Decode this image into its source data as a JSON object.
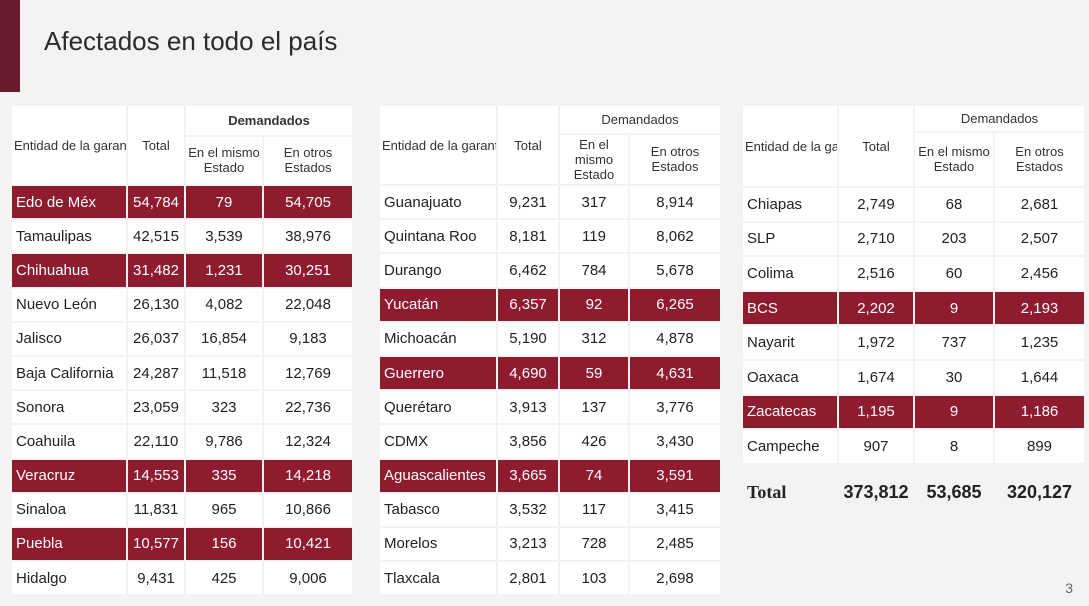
{
  "title": "Afectados en todo el país",
  "page_number": "3",
  "headers": {
    "entidad": "Entidad de la garantía",
    "total": "Total",
    "demandados": "Demandados",
    "mismo": "En el mismo Estado",
    "otros": "En otros Estados"
  },
  "colors": {
    "accent": "#8e1b2e",
    "dark_accent": "#6b1a2c"
  },
  "tables": [
    {
      "rows": [
        {
          "entidad": "Edo de Méx",
          "total": "54,784",
          "mismo": "79",
          "otros": "54,705",
          "highlight": true
        },
        {
          "entidad": "Tamaulipas",
          "total": "42,515",
          "mismo": "3,539",
          "otros": "38,976",
          "highlight": false
        },
        {
          "entidad": "Chihuahua",
          "total": "31,482",
          "mismo": "1,231",
          "otros": "30,251",
          "highlight": true
        },
        {
          "entidad": "Nuevo León",
          "total": "26,130",
          "mismo": "4,082",
          "otros": "22,048",
          "highlight": false
        },
        {
          "entidad": "Jalisco",
          "total": "26,037",
          "mismo": "16,854",
          "otros": "9,183",
          "highlight": false
        },
        {
          "entidad": "Baja California",
          "total": "24,287",
          "mismo": "11,518",
          "otros": "12,769",
          "highlight": false
        },
        {
          "entidad": "Sonora",
          "total": "23,059",
          "mismo": "323",
          "otros": "22,736",
          "highlight": false
        },
        {
          "entidad": "Coahuila",
          "total": "22,110",
          "mismo": "9,786",
          "otros": "12,324",
          "highlight": false
        },
        {
          "entidad": "Veracruz",
          "total": "14,553",
          "mismo": "335",
          "otros": "14,218",
          "highlight": true
        },
        {
          "entidad": "Sinaloa",
          "total": "11,831",
          "mismo": "965",
          "otros": "10,866",
          "highlight": false
        },
        {
          "entidad": "Puebla",
          "total": "10,577",
          "mismo": "156",
          "otros": "10,421",
          "highlight": true
        },
        {
          "entidad": "Hidalgo",
          "total": "9,431",
          "mismo": "425",
          "otros": "9,006",
          "highlight": false
        }
      ]
    },
    {
      "rows": [
        {
          "entidad": "Guanajuato",
          "total": "9,231",
          "mismo": "317",
          "otros": "8,914",
          "highlight": false
        },
        {
          "entidad": "Quintana Roo",
          "total": "8,181",
          "mismo": "119",
          "otros": "8,062",
          "highlight": false
        },
        {
          "entidad": "Durango",
          "total": "6,462",
          "mismo": "784",
          "otros": "5,678",
          "highlight": false
        },
        {
          "entidad": "Yucatán",
          "total": "6,357",
          "mismo": "92",
          "otros": "6,265",
          "highlight": true
        },
        {
          "entidad": "Michoacán",
          "total": "5,190",
          "mismo": "312",
          "otros": "4,878",
          "highlight": false
        },
        {
          "entidad": "Guerrero",
          "total": "4,690",
          "mismo": "59",
          "otros": "4,631",
          "highlight": true
        },
        {
          "entidad": "Querétaro",
          "total": "3,913",
          "mismo": "137",
          "otros": "3,776",
          "highlight": false
        },
        {
          "entidad": "CDMX",
          "total": "3,856",
          "mismo": "426",
          "otros": "3,430",
          "highlight": false
        },
        {
          "entidad": "Aguascalientes",
          "total": "3,665",
          "mismo": "74",
          "otros": "3,591",
          "highlight": true
        },
        {
          "entidad": "Tabasco",
          "total": "3,532",
          "mismo": "117",
          "otros": "3,415",
          "highlight": false
        },
        {
          "entidad": "Morelos",
          "total": "3,213",
          "mismo": "728",
          "otros": "2,485",
          "highlight": false
        },
        {
          "entidad": "Tlaxcala",
          "total": "2,801",
          "mismo": "103",
          "otros": "2,698",
          "highlight": false
        }
      ]
    },
    {
      "rows": [
        {
          "entidad": "Chiapas",
          "total": "2,749",
          "mismo": "68",
          "otros": "2,681",
          "highlight": false
        },
        {
          "entidad": "SLP",
          "total": "2,710",
          "mismo": "203",
          "otros": "2,507",
          "highlight": false
        },
        {
          "entidad": "Colima",
          "total": "2,516",
          "mismo": "60",
          "otros": "2,456",
          "highlight": false
        },
        {
          "entidad": "BCS",
          "total": "2,202",
          "mismo": "9",
          "otros": "2,193",
          "highlight": true
        },
        {
          "entidad": "Nayarit",
          "total": "1,972",
          "mismo": "737",
          "otros": "1,235",
          "highlight": false
        },
        {
          "entidad": "Oaxaca",
          "total": "1,674",
          "mismo": "30",
          "otros": "1,644",
          "highlight": false
        },
        {
          "entidad": "Zacatecas",
          "total": "1,195",
          "mismo": "9",
          "otros": "1,186",
          "highlight": true
        },
        {
          "entidad": "Campeche",
          "total": "907",
          "mismo": "8",
          "otros": "899",
          "highlight": false
        }
      ],
      "total_row": {
        "entidad": "Total",
        "total": "373,812",
        "mismo": "53,685",
        "otros": "320,127"
      }
    }
  ]
}
